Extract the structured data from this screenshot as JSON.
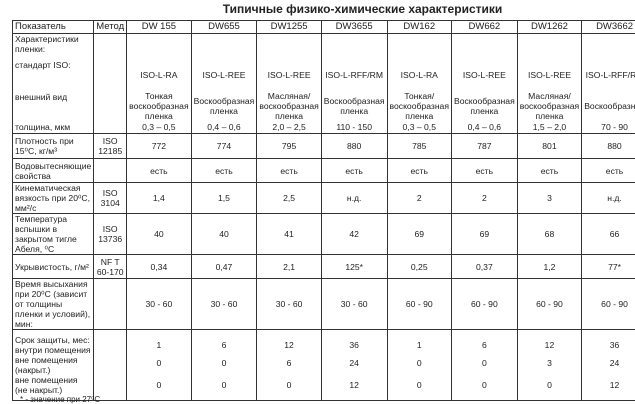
{
  "title": "Типичные физико-химические характеристики",
  "headers": [
    "Показатель",
    "Метод",
    "DW 155",
    "DW655",
    "DW1255",
    "DW3655",
    "DW162",
    "DW662",
    "DW1262",
    "DW3662"
  ],
  "film": {
    "label_lines": [
      "Характеристики пленки:",
      "стандарт ISO:",
      "внешний вид",
      "толщина, мкм"
    ],
    "iso": [
      "ISO-L-RA",
      "ISO-L-REE",
      "ISO-L-REE",
      "ISO-L-RFF/RM",
      "ISO-L-RA",
      "ISO-L-REE",
      "ISO-L-REE",
      "ISO-L-RFF/RM"
    ],
    "look": [
      "Тонкая воскообразная пленка",
      "Воскообразная пленка",
      "Масляная/ воскообразная пленка",
      "Воскообразная пленка",
      "Тонкая/ воскообразная пленка",
      "Воскообразная пленка",
      "Масляная/ воскообразная пленка",
      "Воскообразная"
    ],
    "thickness": [
      "0,3 – 0,5",
      "0,4 – 0,6",
      "2,0 – 2,5",
      "110 - 150",
      "0,3 – 0,5",
      "0,4 – 0,6",
      "1,5 – 2,0",
      "70 - 90"
    ]
  },
  "rows": [
    {
      "label": "Плотность при 15⁰С, кг/м³",
      "method": "ISO 12185",
      "values": [
        "772",
        "774",
        "795",
        "880",
        "785",
        "787",
        "801",
        "880"
      ]
    },
    {
      "label": "Водовытесняющие свойства",
      "method": "",
      "values": [
        "есть",
        "есть",
        "есть",
        "есть",
        "есть",
        "есть",
        "есть",
        "есть"
      ]
    },
    {
      "label": "Кинематическая вязкость при 20⁰С, мм²/с",
      "method": "ISO 3104",
      "values": [
        "1,4",
        "1,5",
        "2,5",
        "н.д.",
        "2",
        "2",
        "3",
        "н.д."
      ]
    },
    {
      "label": "Температура вспышки в закрытом тигле Абеля, ⁰С",
      "method": "ISO 13736",
      "values": [
        "40",
        "40",
        "41",
        "42",
        "69",
        "69",
        "68",
        "66"
      ]
    },
    {
      "label": "Укрывистость, г/м²",
      "method": "NF T 60-170",
      "values": [
        "0,34",
        "0,47",
        "2,1",
        "125*",
        "0,25",
        "0,37",
        "1,2",
        "77*"
      ]
    },
    {
      "label": "Время высыхания при 20⁰С (зависит от толщины пленки и условий), мин:",
      "method": "",
      "values": [
        "30 - 60",
        "30 - 60",
        "30 - 60",
        "30 - 60",
        "60 - 90",
        "60 - 90",
        "60 - 90",
        "60 - 90"
      ]
    }
  ],
  "protection": {
    "label_lines": [
      "Срок защиты, мес:",
      "внутри помещения",
      "вне помещения (накрыт.)",
      "вне помещения (не накрыт.)"
    ],
    "inside": [
      "1",
      "6",
      "12",
      "36",
      "1",
      "6",
      "12",
      "36"
    ],
    "covered": [
      "0",
      "0",
      "6",
      "24",
      "0",
      "0",
      "3",
      "24"
    ],
    "uncovered": [
      "0",
      "0",
      "0",
      "12",
      "0",
      "0",
      "0",
      "12"
    ]
  },
  "footnote": "* - значение при 27⁰С"
}
